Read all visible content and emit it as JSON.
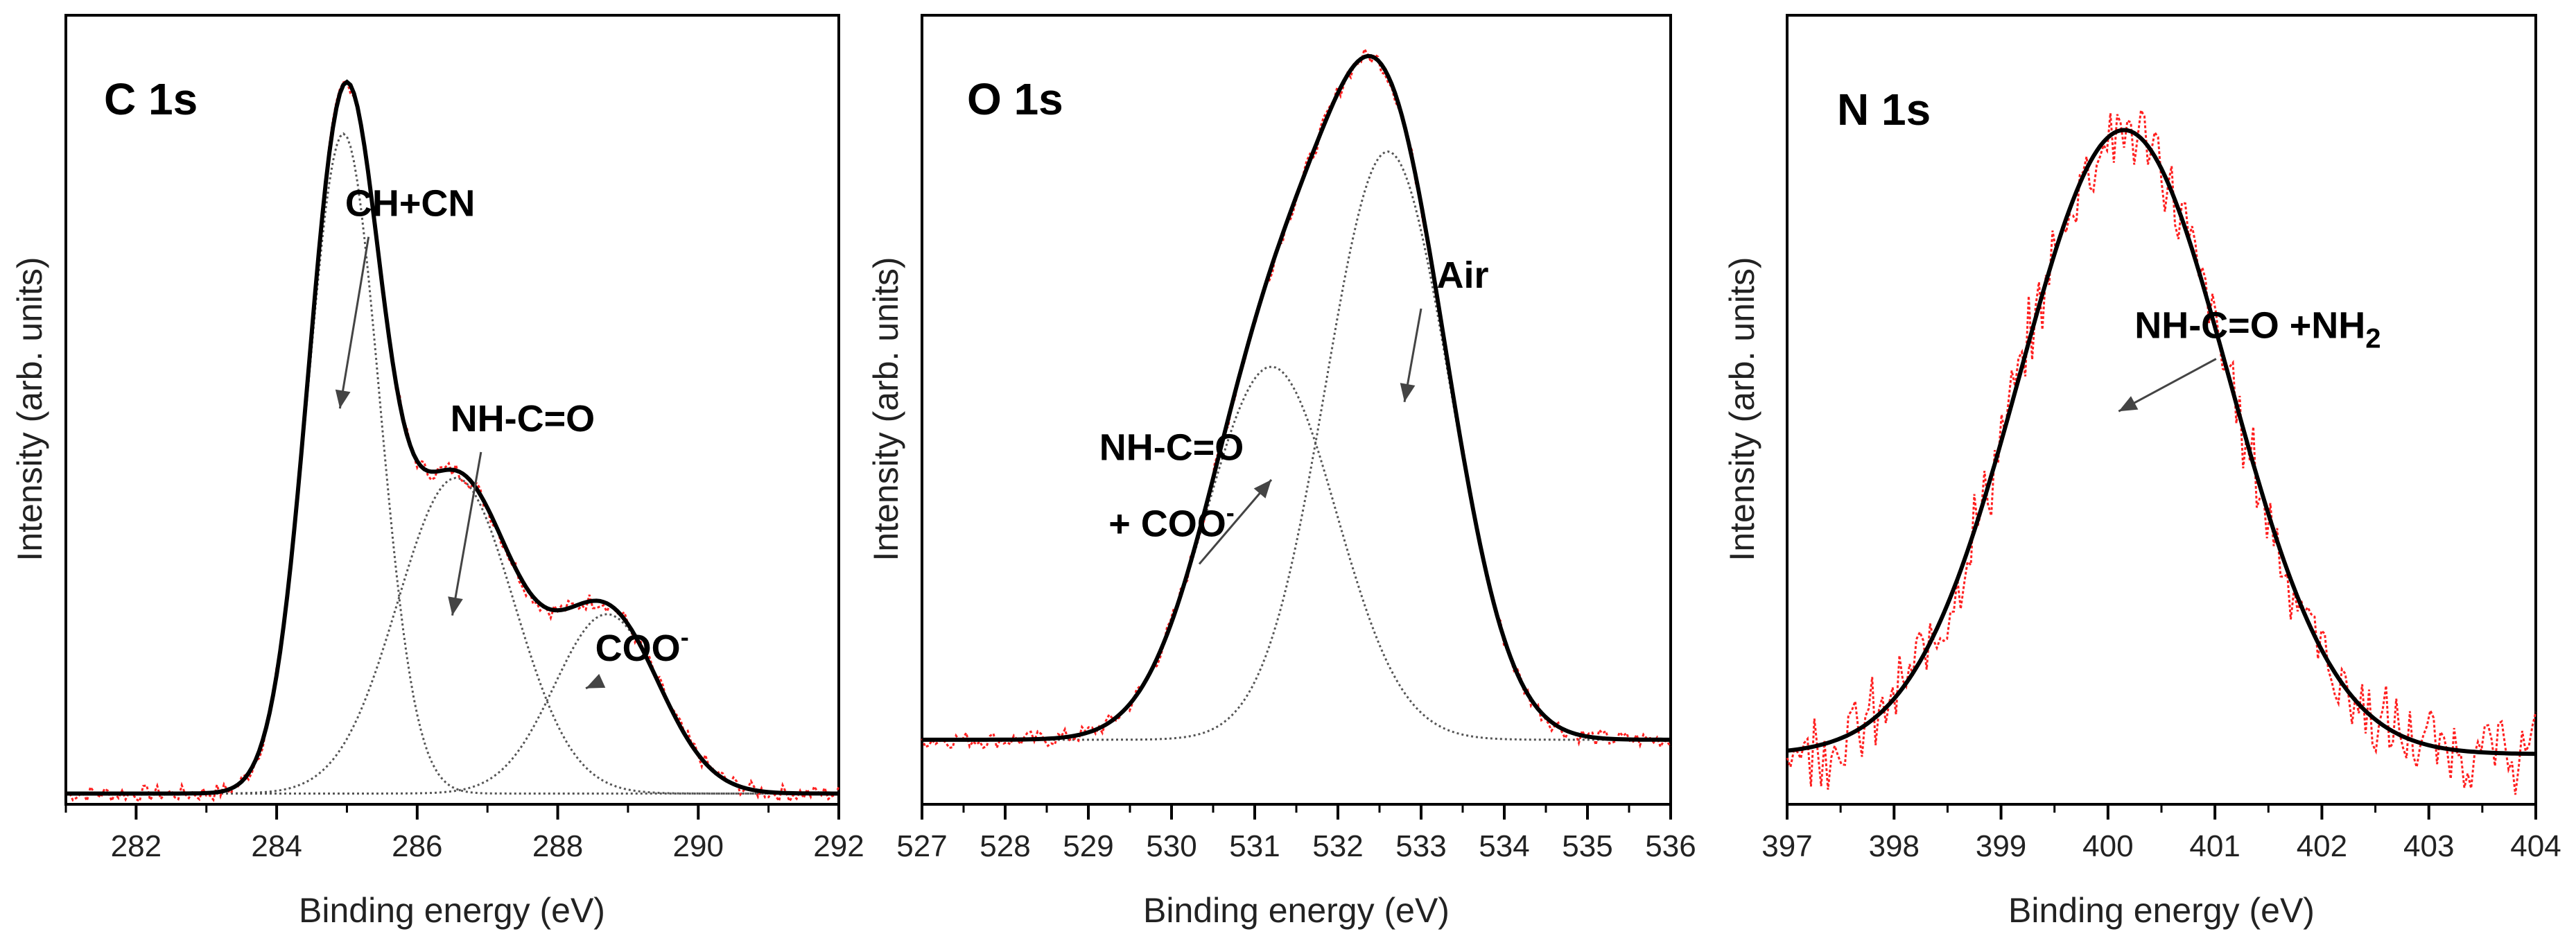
{
  "figure": {
    "description_free": true
  },
  "chart_data": [
    {
      "type": "line",
      "title": "C 1s",
      "xlabel": "Binding energy (eV)",
      "ylabel": "Intensity (arb. units)",
      "xlim": [
        281,
        292
      ],
      "ylim": [
        0,
        1.1
      ],
      "x_ticks": [
        282,
        284,
        286,
        288,
        290,
        292
      ],
      "x_reversed": false,
      "baseline": 0.015,
      "components": [
        {
          "name": "CH+CN",
          "center": 284.95,
          "fwhm": 1.2,
          "height": 0.92
        },
        {
          "name": "NH-C=O",
          "center": 286.55,
          "fwhm": 1.95,
          "height": 0.44
        },
        {
          "name": "COO-",
          "center": 288.7,
          "fwhm": 1.75,
          "height": 0.25
        }
      ],
      "series": [
        {
          "name": "experimental",
          "style": "dotted",
          "color": "#ff2020"
        },
        {
          "name": "fit envelope",
          "style": "solid",
          "color": "#000000"
        },
        {
          "name": "components",
          "style": "dotted",
          "color": "#555555"
        }
      ],
      "annotations": [
        {
          "text": "CH+CN",
          "points_to": 284.9,
          "label_at": [
            285.9,
            0.82
          ]
        },
        {
          "text": "NH-C=O",
          "points_to": 286.5,
          "label_at": [
            287.5,
            0.52
          ]
        },
        {
          "text": "COO",
          "superscript": "-",
          "points_to": 288.4,
          "label_at": [
            289.2,
            0.2
          ]
        }
      ]
    },
    {
      "type": "line",
      "title": "O 1s",
      "xlabel": "Binding energy (eV)",
      "ylabel": "Intensity (arb. units)",
      "xlim": [
        527,
        536
      ],
      "ylim": [
        0,
        1.1
      ],
      "x_ticks": [
        527,
        528,
        529,
        530,
        531,
        532,
        533,
        534,
        535,
        536
      ],
      "baseline": 0.09,
      "components": [
        {
          "name": "NH-C=O + COO-",
          "center": 531.2,
          "fwhm": 1.85,
          "height": 0.52
        },
        {
          "name": "Air",
          "center": 532.6,
          "fwhm": 1.75,
          "height": 0.82
        }
      ],
      "series": [
        {
          "name": "experimental",
          "style": "dotted",
          "color": "#ff2020"
        },
        {
          "name": "fit envelope",
          "style": "solid",
          "color": "#000000"
        },
        {
          "name": "components",
          "style": "dotted",
          "color": "#555555"
        }
      ],
      "annotations": [
        {
          "text": "NH-C=O",
          "text2": "+ COO",
          "superscript": "-",
          "points_to": 531.2,
          "label_at": [
            530.0,
            0.48
          ]
        },
        {
          "text": "Air",
          "points_to": 532.8,
          "label_at": [
            533.5,
            0.72
          ]
        }
      ]
    },
    {
      "type": "line",
      "title": "N 1s",
      "xlabel": "Binding energy (eV)",
      "ylabel": "Intensity (arb. units)",
      "xlim": [
        397,
        404
      ],
      "ylim": [
        0,
        1.1
      ],
      "x_ticks": [
        397,
        398,
        399,
        400,
        401,
        402,
        403,
        404
      ],
      "baseline": 0.07,
      "components": [
        {
          "name": "NH-C=O +NH2",
          "center": 400.15,
          "fwhm": 2.3,
          "height": 0.87
        }
      ],
      "series": [
        {
          "name": "experimental",
          "style": "dotted",
          "color": "#ff2020"
        },
        {
          "name": "fit envelope",
          "style": "solid",
          "color": "#000000"
        }
      ],
      "annotations": [
        {
          "text": "NH-C=O +NH",
          "subscript": "2",
          "points_to": 400.1,
          "label_at": [
            401.4,
            0.65
          ]
        }
      ]
    }
  ]
}
